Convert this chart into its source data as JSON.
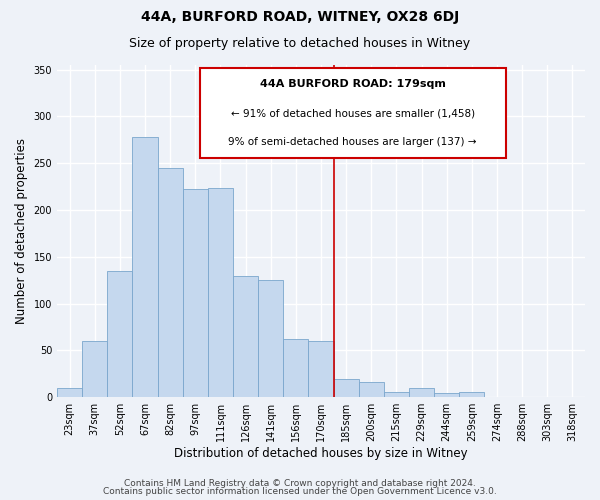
{
  "title": "44A, BURFORD ROAD, WITNEY, OX28 6DJ",
  "subtitle": "Size of property relative to detached houses in Witney",
  "xlabel": "Distribution of detached houses by size in Witney",
  "ylabel": "Number of detached properties",
  "bar_labels": [
    "23sqm",
    "37sqm",
    "52sqm",
    "67sqm",
    "82sqm",
    "97sqm",
    "111sqm",
    "126sqm",
    "141sqm",
    "156sqm",
    "170sqm",
    "185sqm",
    "200sqm",
    "215sqm",
    "229sqm",
    "244sqm",
    "259sqm",
    "274sqm",
    "288sqm",
    "303sqm",
    "318sqm"
  ],
  "bar_values": [
    10,
    60,
    135,
    278,
    245,
    222,
    224,
    130,
    125,
    62,
    60,
    19,
    16,
    6,
    10,
    4,
    6,
    0,
    0,
    0,
    0
  ],
  "bar_color": "#c5d8ee",
  "bar_edge_color": "#7aa6cc",
  "vline_color": "#cc0000",
  "annotation_title": "44A BURFORD ROAD: 179sqm",
  "annotation_line1": "← 91% of detached houses are smaller (1,458)",
  "annotation_line2": "9% of semi-detached houses are larger (137) →",
  "annotation_box_color": "#ffffff",
  "annotation_box_edge": "#cc0000",
  "ylim": [
    0,
    355
  ],
  "yticks": [
    0,
    50,
    100,
    150,
    200,
    250,
    300,
    350
  ],
  "footer1": "Contains HM Land Registry data © Crown copyright and database right 2024.",
  "footer2": "Contains public sector information licensed under the Open Government Licence v3.0.",
  "background_color": "#eef2f8",
  "grid_color": "#ffffff",
  "title_fontsize": 10,
  "subtitle_fontsize": 9,
  "axis_label_fontsize": 8.5,
  "tick_fontsize": 7,
  "footer_fontsize": 6.5,
  "annotation_title_fontsize": 8,
  "annotation_text_fontsize": 7.5
}
